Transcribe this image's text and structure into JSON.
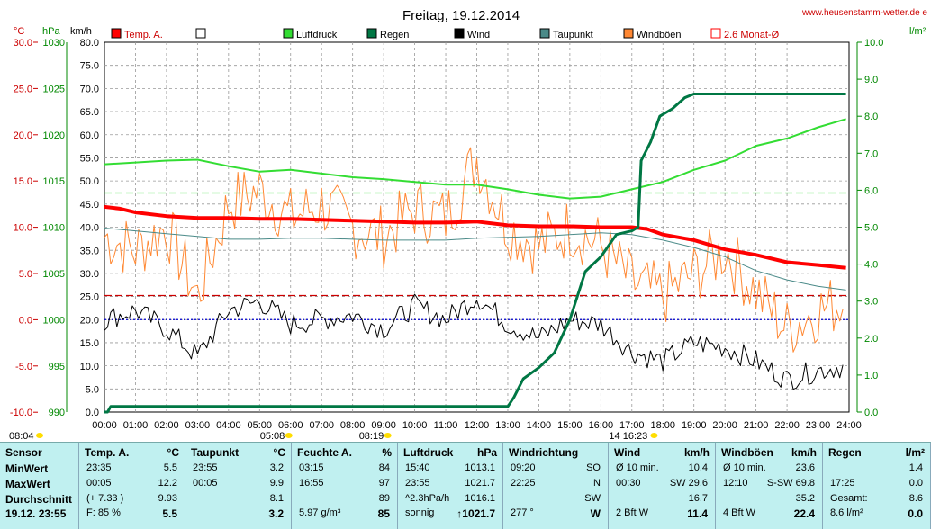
{
  "title": "Freitag, 19.12.2014",
  "website": "www.heusenstamm-wetter.de e",
  "units": {
    "temp": "°C",
    "pressure": "hPa",
    "wind": "km/h",
    "rain": "l/m²"
  },
  "legend": [
    {
      "label": "Temp. A.",
      "color": "#ff0000"
    },
    {
      "label": "",
      "color": "#ffffff"
    },
    {
      "label": "Luftdruck",
      "color": "#33dd33"
    },
    {
      "label": "Regen",
      "color": "#007744"
    },
    {
      "label": "Wind",
      "color": "#000000"
    },
    {
      "label": "Taupunkt",
      "color": "#4a8a88"
    },
    {
      "label": "Windböen",
      "color": "#ff8833"
    },
    {
      "label": "2.6 Monat-Ø",
      "color": "#ff0000"
    }
  ],
  "axis_labels": {
    "temp": [
      "30.0",
      "25.0",
      "20.0",
      "15.0",
      "10.0",
      "5.0",
      "0.0",
      "-5.0",
      "-10.0"
    ],
    "pressure": [
      "1030",
      "1025",
      "1020",
      "1015",
      "1010",
      "1005",
      "1000",
      "995",
      "990"
    ],
    "wind": [
      "80.0",
      "75.0",
      "70.0",
      "65.0",
      "60.0",
      "55.0",
      "50.0",
      "45.0",
      "40.0",
      "35.0",
      "30.0",
      "25.0",
      "20.0",
      "15.0",
      "10.0",
      "5.0",
      "0.0"
    ],
    "rain": [
      "10.0",
      "9.0",
      "8.0",
      "7.0",
      "6.0",
      "5.0",
      "4.0",
      "3.0",
      "2.0",
      "1.0",
      "0.0"
    ],
    "x": [
      "00:00",
      "01:00",
      "02:00",
      "03:00",
      "04:00",
      "05:00",
      "06:00",
      "07:00",
      "08:00",
      "09:00",
      "10:00",
      "11:00",
      "12:00",
      "13:00",
      "14:00",
      "15:00",
      "16:00",
      "17:00",
      "18:00",
      "19:00",
      "20:00",
      "21:00",
      "22:00",
      "23:00",
      "24:00"
    ]
  },
  "sun_markers": [
    {
      "label": "08:04",
      "hour": 8.07
    },
    {
      "label": "05:08",
      "hour": 5.13
    },
    {
      "label": "08:19",
      "hour": 8.32
    },
    {
      "label": "14 16:23",
      "hour": 16.38
    }
  ],
  "chart_data": {
    "type": "line",
    "title": "Freitag, 19.12.2014",
    "x_range_hours": [
      0,
      24
    ],
    "series": [
      {
        "name": "Temp. A.",
        "axis": "temp",
        "unit": "°C",
        "x": [
          0,
          0.5,
          1,
          2,
          3,
          4,
          5,
          6,
          7,
          8,
          9,
          10,
          11,
          12,
          13,
          14,
          15,
          16,
          17,
          17.5,
          18,
          19,
          20,
          20.5,
          21,
          22,
          23,
          23.9
        ],
        "y": [
          12.2,
          12.0,
          11.6,
          11.2,
          11.0,
          11.0,
          10.9,
          10.9,
          10.8,
          10.7,
          10.6,
          10.5,
          10.5,
          10.6,
          10.2,
          10.1,
          10.1,
          10.0,
          10.0,
          9.8,
          9.2,
          8.6,
          7.6,
          7.3,
          7.0,
          6.2,
          5.9,
          5.6
        ]
      },
      {
        "name": "Luftdruck",
        "axis": "pressure",
        "unit": "hPa",
        "x": [
          0,
          1,
          2,
          3,
          4,
          5,
          6,
          7,
          8,
          9,
          10,
          11,
          12,
          13,
          14,
          15,
          16,
          17,
          18,
          19,
          20,
          21,
          22,
          23,
          23.9
        ],
        "y": [
          1016.8,
          1017.0,
          1017.2,
          1017.3,
          1016.6,
          1016.0,
          1016.2,
          1015.8,
          1015.4,
          1015.2,
          1014.9,
          1014.6,
          1014.6,
          1014.1,
          1013.5,
          1013.1,
          1013.3,
          1014.1,
          1014.9,
          1016.2,
          1017.2,
          1018.8,
          1019.6,
          1020.8,
          1021.7
        ]
      },
      {
        "name": "Taupunkt",
        "axis": "temp",
        "unit": "°C",
        "x": [
          0,
          1,
          2,
          3,
          4,
          5,
          6,
          7,
          8,
          9,
          10,
          11,
          12,
          13,
          14,
          15,
          16,
          17,
          18,
          19,
          20,
          21,
          22,
          23,
          23.9
        ],
        "y": [
          9.9,
          9.6,
          9.3,
          9.0,
          8.7,
          8.7,
          8.8,
          8.8,
          8.7,
          8.6,
          8.6,
          8.6,
          8.8,
          8.9,
          9.0,
          9.2,
          9.4,
          9.2,
          8.6,
          7.8,
          6.8,
          5.3,
          4.3,
          3.6,
          3.2
        ]
      },
      {
        "name": "Regen",
        "axis": "rain",
        "unit": "l/m²",
        "x": [
          0,
          0.1,
          0.2,
          13.0,
          13.2,
          13.5,
          14.0,
          14.5,
          15.0,
          15.5,
          16.0,
          16.5,
          17.0,
          17.2,
          17.3,
          17.6,
          17.9,
          18.3,
          18.7,
          19.0,
          23.9
        ],
        "y": [
          0.0,
          0.0,
          0.15,
          0.15,
          0.4,
          0.9,
          1.2,
          1.6,
          2.5,
          3.8,
          4.2,
          4.8,
          4.9,
          5.0,
          6.8,
          7.3,
          8.0,
          8.2,
          8.5,
          8.6,
          8.6
        ]
      },
      {
        "name": "Wind",
        "axis": "wind",
        "unit": "km/h",
        "x": [
          0,
          1,
          2,
          3,
          4,
          5,
          6,
          7,
          8,
          9,
          10,
          11,
          12,
          13,
          14,
          15,
          16,
          17,
          18,
          19,
          20,
          21,
          22,
          23,
          23.9
        ],
        "y": [
          20,
          22,
          18,
          12,
          22,
          24,
          19,
          20,
          21,
          18,
          23,
          20,
          25,
          19,
          16,
          20,
          19,
          13,
          11,
          15,
          14,
          11,
          7,
          9,
          10
        ]
      },
      {
        "name": "Windböen",
        "axis": "wind",
        "unit": "km/h",
        "x": [
          0,
          1,
          2,
          3,
          4,
          5,
          6,
          7,
          8,
          9,
          10,
          11,
          12,
          13,
          14,
          15,
          16,
          17,
          18,
          19,
          20,
          21,
          22,
          23,
          23.9
        ],
        "y": [
          38,
          35,
          40,
          25,
          45,
          48,
          42,
          45,
          40,
          38,
          44,
          42,
          55,
          40,
          36,
          40,
          36,
          28,
          25,
          30,
          35,
          26,
          18,
          22,
          24
        ]
      }
    ],
    "reference_lines": [
      {
        "name": "2.6 Monat-Ø",
        "axis": "temp",
        "value": 2.6
      },
      {
        "name": "pressure-avg",
        "axis": "pressure",
        "value": 1013.7
      },
      {
        "name": "freezing",
        "axis": "temp",
        "value": 0.0
      }
    ]
  },
  "table": {
    "row_labels": [
      "Sensor",
      "MinWert",
      "MaxWert",
      "Durchschnitt",
      "19.12. 23:55"
    ],
    "temp": {
      "title": "Temp. A.",
      "unit": "°C",
      "rows": [
        [
          "23:35",
          "5.5"
        ],
        [
          "00:05",
          "12.2"
        ],
        [
          "(+ 7.33 )",
          "9.93"
        ],
        [
          "F: 85 %",
          "5.5"
        ]
      ]
    },
    "dew": {
      "title": "Taupunkt",
      "unit": "°C",
      "rows": [
        [
          "23:55",
          "3.2"
        ],
        [
          "00:05",
          "9.9"
        ],
        [
          "",
          "8.1"
        ],
        [
          "",
          "3.2"
        ]
      ]
    },
    "hum": {
      "title": "Feuchte A.",
      "unit": "%",
      "rows": [
        [
          "03:15",
          "84"
        ],
        [
          "16:55",
          "97"
        ],
        [
          "",
          "89"
        ],
        [
          "5.97 g/m³",
          "85"
        ]
      ]
    },
    "press": {
      "title": "Luftdruck",
      "unit": "hPa",
      "rows": [
        [
          "15:40",
          "1013.1"
        ],
        [
          "23:55",
          "1021.7"
        ],
        [
          "^2.3hPa/h",
          "1016.1"
        ],
        [
          "sonnig",
          "↑1021.7"
        ]
      ]
    },
    "dir": {
      "title": "Windrichtung",
      "rows": [
        [
          "09:20",
          "SO"
        ],
        [
          "22:25",
          "N"
        ],
        [
          "",
          "SW"
        ],
        [
          "277 °",
          "W"
        ]
      ]
    },
    "wind": {
      "title": "Wind",
      "unit": "km/h",
      "rows": [
        [
          "Ø 10 min.",
          "",
          "10.4"
        ],
        [
          "00:30",
          "SW 29.6",
          ""
        ],
        [
          "",
          "",
          "16.7"
        ],
        [
          "2 Bft W",
          "",
          "11.4"
        ]
      ]
    },
    "gust": {
      "title": "Windböen",
      "unit": "km/h",
      "rows": [
        [
          "Ø 10 min.",
          "",
          "23.6"
        ],
        [
          "12:10",
          "S-SW 69.8",
          ""
        ],
        [
          "",
          "",
          "35.2"
        ],
        [
          "4 Bft W",
          "",
          "22.4"
        ]
      ]
    },
    "rain": {
      "title": "Regen",
      "unit": "l/m²",
      "rows": [
        [
          "",
          "1.4"
        ],
        [
          "17:25",
          "0.0"
        ],
        [
          "Gesamt:",
          "8.6"
        ],
        [
          "8.6 l/m²",
          "0.0"
        ]
      ]
    }
  }
}
